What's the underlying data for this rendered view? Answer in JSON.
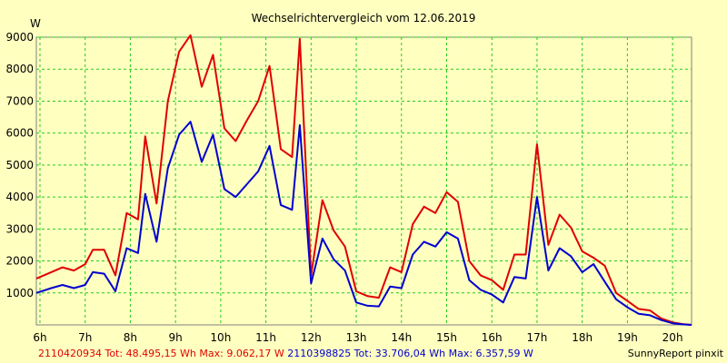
{
  "chart_data": {
    "type": "line",
    "title": "Wechselrichtervergleich vom 12.06.2019",
    "ylabel": "W",
    "xlabel": "",
    "ylim": [
      0,
      9000
    ],
    "xlim": [
      5.92,
      20.42
    ],
    "yticks": [
      1000,
      2000,
      3000,
      4000,
      5000,
      6000,
      7000,
      8000,
      9000
    ],
    "ytick_labels": [
      "1000",
      "2000",
      "3000",
      "4000",
      "5000",
      "6000",
      "7000",
      "8000",
      "9000"
    ],
    "xticks": [
      6,
      7,
      8,
      9,
      10,
      11,
      12,
      13,
      14,
      15,
      16,
      17,
      18,
      19,
      20
    ],
    "xtick_labels": [
      "6h",
      "7h",
      "8h",
      "9h",
      "10h",
      "11h",
      "12h",
      "13h",
      "14h",
      "15h",
      "16h",
      "17h",
      "18h",
      "19h",
      "20h"
    ],
    "grid": true,
    "legend_position": "bottom",
    "series": [
      {
        "name": "2110420934",
        "color": "#e00000",
        "footer": "2110420934 Tot: 48.495,15 Wh Max: 9.062,17 W",
        "points": [
          [
            5.92,
            1450
          ],
          [
            6.25,
            1650
          ],
          [
            6.5,
            1800
          ],
          [
            6.75,
            1700
          ],
          [
            7.0,
            1900
          ],
          [
            7.17,
            2350
          ],
          [
            7.42,
            2350
          ],
          [
            7.67,
            1550
          ],
          [
            7.92,
            3500
          ],
          [
            8.17,
            3300
          ],
          [
            8.33,
            5900
          ],
          [
            8.58,
            3800
          ],
          [
            8.83,
            7000
          ],
          [
            9.08,
            8550
          ],
          [
            9.33,
            9062
          ],
          [
            9.58,
            7450
          ],
          [
            9.83,
            8450
          ],
          [
            10.08,
            6150
          ],
          [
            10.33,
            5750
          ],
          [
            10.58,
            6400
          ],
          [
            10.83,
            7000
          ],
          [
            11.08,
            8100
          ],
          [
            11.33,
            5500
          ],
          [
            11.58,
            5250
          ],
          [
            11.75,
            8950
          ],
          [
            12.0,
            1550
          ],
          [
            12.25,
            3900
          ],
          [
            12.5,
            2950
          ],
          [
            12.75,
            2450
          ],
          [
            13.0,
            1050
          ],
          [
            13.25,
            900
          ],
          [
            13.5,
            850
          ],
          [
            13.75,
            1800
          ],
          [
            14.0,
            1650
          ],
          [
            14.25,
            3150
          ],
          [
            14.5,
            3700
          ],
          [
            14.75,
            3500
          ],
          [
            15.0,
            4150
          ],
          [
            15.25,
            3850
          ],
          [
            15.5,
            2000
          ],
          [
            15.75,
            1550
          ],
          [
            16.0,
            1400
          ],
          [
            16.25,
            1100
          ],
          [
            16.5,
            2200
          ],
          [
            16.75,
            2200
          ],
          [
            17.0,
            5650
          ],
          [
            17.25,
            2500
          ],
          [
            17.5,
            3450
          ],
          [
            17.75,
            3050
          ],
          [
            18.0,
            2300
          ],
          [
            18.25,
            2100
          ],
          [
            18.5,
            1850
          ],
          [
            18.75,
            1000
          ],
          [
            19.0,
            750
          ],
          [
            19.25,
            500
          ],
          [
            19.5,
            450
          ],
          [
            19.75,
            200
          ],
          [
            20.0,
            80
          ],
          [
            20.25,
            20
          ],
          [
            20.42,
            0
          ]
        ]
      },
      {
        "name": "2110398825",
        "color": "#0000d0",
        "footer": "2110398825 Tot: 33.706,04 Wh Max: 6.357,59 W",
        "points": [
          [
            5.92,
            1000
          ],
          [
            6.25,
            1150
          ],
          [
            6.5,
            1250
          ],
          [
            6.75,
            1150
          ],
          [
            7.0,
            1250
          ],
          [
            7.17,
            1650
          ],
          [
            7.42,
            1600
          ],
          [
            7.67,
            1050
          ],
          [
            7.92,
            2400
          ],
          [
            8.17,
            2250
          ],
          [
            8.33,
            4100
          ],
          [
            8.58,
            2600
          ],
          [
            8.83,
            4900
          ],
          [
            9.08,
            5950
          ],
          [
            9.33,
            6357
          ],
          [
            9.58,
            5100
          ],
          [
            9.83,
            5950
          ],
          [
            10.08,
            4250
          ],
          [
            10.33,
            4000
          ],
          [
            10.58,
            4400
          ],
          [
            10.83,
            4800
          ],
          [
            11.08,
            5600
          ],
          [
            11.33,
            3750
          ],
          [
            11.58,
            3600
          ],
          [
            11.75,
            6250
          ],
          [
            12.0,
            1300
          ],
          [
            12.25,
            2700
          ],
          [
            12.5,
            2050
          ],
          [
            12.75,
            1700
          ],
          [
            13.0,
            700
          ],
          [
            13.25,
            600
          ],
          [
            13.5,
            580
          ],
          [
            13.75,
            1200
          ],
          [
            14.0,
            1150
          ],
          [
            14.25,
            2200
          ],
          [
            14.5,
            2600
          ],
          [
            14.75,
            2450
          ],
          [
            15.0,
            2900
          ],
          [
            15.25,
            2700
          ],
          [
            15.5,
            1400
          ],
          [
            15.75,
            1100
          ],
          [
            16.0,
            950
          ],
          [
            16.25,
            700
          ],
          [
            16.5,
            1500
          ],
          [
            16.75,
            1450
          ],
          [
            17.0,
            4000
          ],
          [
            17.25,
            1700
          ],
          [
            17.5,
            2400
          ],
          [
            17.75,
            2150
          ],
          [
            18.0,
            1650
          ],
          [
            18.25,
            1900
          ],
          [
            18.5,
            1350
          ],
          [
            18.75,
            800
          ],
          [
            19.0,
            550
          ],
          [
            19.25,
            350
          ],
          [
            19.5,
            300
          ],
          [
            19.75,
            150
          ],
          [
            20.0,
            50
          ],
          [
            20.25,
            15
          ],
          [
            20.42,
            0
          ]
        ]
      }
    ]
  },
  "branding": "SunnyReport pinxit",
  "colors": {
    "background": "#ffffc0",
    "plot_background": "#ffffc0",
    "grid": "#22cc22"
  }
}
